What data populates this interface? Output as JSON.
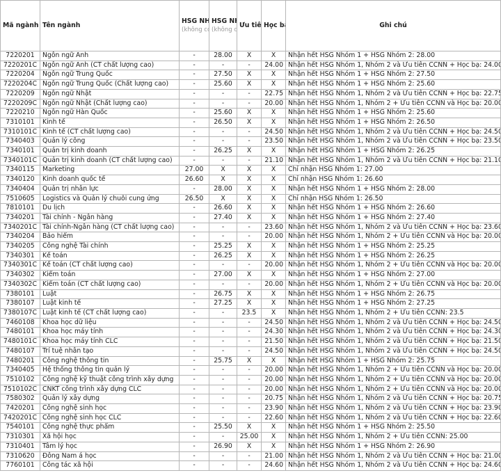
{
  "headers": {
    "code": "Mã ngành",
    "name": "Tên ngành",
    "hsg1": "HSG NHÓM 1",
    "hsg1_sub": "(không có CCNN)",
    "hsg2": "HSG NHÓM 2",
    "hsg2_sub": "(không có CCNN)",
    "ccnn": "Ưu tiên CCNN",
    "hocba": "Học bạ",
    "note": "Ghi chú"
  },
  "rows": [
    [
      "7220201",
      "Ngôn ngữ Anh",
      "-",
      "28.00",
      "X",
      "X",
      "Nhận hết HSG Nhóm 1 + HSG Nhóm 2: 28.00"
    ],
    [
      "7220201C",
      "Ngôn ngữ Anh (CT chất lượng cao)",
      "-",
      "-",
      "-",
      "24.00",
      "Nhận hết HSG Nhóm 1, Nhóm 2 và Ưu tiên CCNN + Học bạ: 24.00"
    ],
    [
      "7220204",
      "Ngôn ngữ Trung Quốc",
      "-",
      "27.50",
      "X",
      "X",
      "Nhận hết HSG Nhóm 1 + HSG Nhóm 2: 27.50"
    ],
    [
      "7220204C",
      "Ngôn ngữ Trung Quốc (Chất lượng cao)",
      "-",
      "25.60",
      "X",
      "X",
      "Nhận hết HSG Nhóm 1 + HSG Nhóm 2: 25.60"
    ],
    [
      "7220209",
      "Ngôn ngữ Nhật",
      "-",
      "-",
      "-",
      "22.75",
      "Nhận hết HSG Nhóm 1, Nhóm 2 và Ưu tiên CCNN + Học bạ: 22.75"
    ],
    [
      "7220209C",
      "Ngôn ngữ Nhật (Chất lượng cao)",
      "-",
      "-",
      "-",
      "20.00",
      "Nhận hết HSG Nhóm 1, Nhóm 2 + Ưu tiên CCNN và Học bạ: 20.00"
    ],
    [
      "7220210",
      "Ngôn ngữ Hàn Quốc",
      "-",
      "25.60",
      "X",
      "X",
      "Nhận hết HSG Nhóm 1 + HSG Nhóm 2: 25.60"
    ],
    [
      "7310101",
      "Kinh tế",
      "-",
      "26.50",
      "X",
      "X",
      "Nhận hết HSG Nhóm 1 + HSG Nhóm 2: 26.50"
    ],
    [
      "7310101C",
      "Kinh tế (CT chất lượng cao)",
      "-",
      "-",
      "-",
      "24.50",
      "Nhận hết HSG Nhóm 1, Nhóm 2 và Ưu tiên CCNN + Học bạ: 24.50"
    ],
    [
      "7340403",
      "Quản lý công",
      "-",
      "-",
      "-",
      "23.50",
      "Nhận hết HSG Nhóm 1, Nhóm 2 và Ưu tiên CCNN + Học bạ: 23.50"
    ],
    [
      "7340101",
      "Quản trị kinh doanh",
      "-",
      "26.25",
      "X",
      "X",
      "Nhận hết HSG Nhóm 1 + HSG Nhóm 2: 26.25"
    ],
    [
      "7340101C",
      "Quản trị kinh doanh (CT chất lượng cao)",
      "-",
      "-",
      "-",
      "21.10",
      "Nhận hết HSG Nhóm 1, Nhóm 2 và Ưu tiên CCNN + Học bạ: 21.10"
    ],
    [
      "7340115",
      "Marketing",
      "27.00",
      "X",
      "X",
      "X",
      "Chỉ nhận HSG Nhóm 1: 27.00"
    ],
    [
      "7340120",
      "Kinh doanh quốc tế",
      "26.60",
      "X",
      "X",
      "X",
      "Chỉ nhận HSG Nhóm 1: 26.60"
    ],
    [
      "7340404",
      "Quản trị nhân lực",
      "-",
      "28.00",
      "X",
      "X",
      "Nhận hết HSG Nhóm 1 + HSG Nhóm 2: 28.00"
    ],
    [
      "7510605",
      "Logistics và Quản lý chuỗi cung ứng",
      "26.50",
      "X",
      "X",
      "X",
      "Chỉ nhận HSG Nhóm 1: 26.50"
    ],
    [
      "7810101",
      "Du lịch",
      "-",
      "26.60",
      "X",
      "X",
      "Nhận hết HSG Nhóm 1 + HSG Nhóm 2: 26.60"
    ],
    [
      "7340201",
      "Tài chính - Ngân hàng",
      "-",
      "27.40",
      "X",
      "X",
      "Nhận hết HSG Nhóm 1 + HSG Nhóm 2: 27.40"
    ],
    [
      "7340201C",
      "Tài chính-Ngân hàng (CT chất lượng cao)",
      "-",
      "-",
      "-",
      "23.60",
      "Nhận hết HSG Nhóm 1, Nhóm 2 và Ưu tiên CCNN + Học bạ: 23.60"
    ],
    [
      "7340204",
      "Bảo hiểm",
      "-",
      "-",
      "-",
      "20.00",
      "Nhận hết HSG Nhóm 1, Nhóm 2 + Ưu tiên CCNN và Học bạ: 20.00"
    ],
    [
      "7340205",
      "Công nghệ Tài chính",
      "-",
      "25.25",
      "X",
      "X",
      "Nhận hết HSG Nhóm 1 + HSG Nhóm 2: 25.25"
    ],
    [
      "7340301",
      "Kế toán",
      "-",
      "26.25",
      "X",
      "X",
      "Nhận hết HSG Nhóm 1 + HSG Nhóm 2: 26.25"
    ],
    [
      "7340301C",
      "Kế toán (CT chất lượng cao)",
      "-",
      "-",
      "-",
      "20.00",
      "Nhận hết HSG Nhóm 1, Nhóm 2 + Ưu tiên CCNN và Học bạ: 20.00"
    ],
    [
      "7340302",
      "Kiểm toán",
      "-",
      "27.00",
      "X",
      "X",
      "Nhận hết HSG Nhóm 1 + HSG Nhóm 2: 27.00"
    ],
    [
      "7340302C",
      "Kiểm toán (CT chất lượng cao)",
      "-",
      "-",
      "-",
      "20.00",
      "Nhận hết HSG Nhóm 1, Nhóm 2 + Ưu tiên CCNN và Học bạ: 20.00"
    ],
    [
      "7380101",
      "Luật",
      "-",
      "26.75",
      "X",
      "X",
      "Nhận hết HSG Nhóm 1 + HSG Nhóm 2: 26.75"
    ],
    [
      "7380107",
      "Luật kinh tế",
      "-",
      "27.25",
      "X",
      "X",
      "Nhận hết HSG Nhóm 1 + HSG Nhóm 2: 27.25"
    ],
    [
      "7380107C",
      "Luật kinh tế (CT chất lượng cao)",
      "-",
      "-",
      "23.5",
      "X",
      "Nhận hết HSG Nhóm 1, Nhóm 2 + Ưu tiên CCNN: 23.5"
    ],
    [
      "7460108",
      "Khoa học dữ liệu",
      "-",
      "-",
      "-",
      "24.50",
      "Nhận hết HSG Nhóm 1, Nhóm 2 và Ưu tiên CCNN + Học bạ: 24.50"
    ],
    [
      "7480101",
      "Khoa học máy tính",
      "-",
      "-",
      "-",
      "24.30",
      "Nhận hết HSG Nhóm 1, Nhóm 2 và Ưu tiên CCNN + Học bạ: 24.30"
    ],
    [
      "7480101C",
      "Khoa học máy tính CLC",
      "-",
      "-",
      "-",
      "21.50",
      "Nhận hết HSG Nhóm 1, Nhóm 2 và Ưu tiên CCNN + Học bạ: 21.50"
    ],
    [
      "7480107",
      "Trí tuệ nhân tạo",
      "-",
      "-",
      "-",
      "24.50",
      "Nhận hết HSG Nhóm 1, Nhóm 2 và Ưu tiên CCNN + Học bạ: 24.50"
    ],
    [
      "7480201",
      "Công nghệ thông tin",
      "-",
      "25.75",
      "X",
      "X",
      "Nhận hết HSG Nhóm 1 + HSG Nhóm 2: 25.75"
    ],
    [
      "7340405",
      "Hệ thống thông tin quản lý",
      "-",
      "-",
      "-",
      "20.00",
      "Nhận hết HSG Nhóm 1, Nhóm 2 + Ưu tiên CCNN và Học bạ: 20.00"
    ],
    [
      "7510102",
      "Công nghệ kỹ thuật công trình xây dựng",
      "-",
      "-",
      "-",
      "20.00",
      "Nhận hết HSG Nhóm 1, Nhóm 2 + Ưu tiên CCNN và Học bạ: 20.00"
    ],
    [
      "7510102C",
      "CNKT công trình xây dựng CLC",
      "-",
      "-",
      "-",
      "20.00",
      "Nhận hết HSG Nhóm 1, Nhóm 2 + Ưu tiên CCNN và Học bạ: 20.00"
    ],
    [
      "7580302",
      "Quản lý xây dựng",
      "-",
      "-",
      "-",
      "20.75",
      "Nhận hết HSG Nhóm 1, Nhóm 2 và Ưu tiên CCNN + Học bạ: 20.75"
    ],
    [
      "7420201",
      "Công nghệ sinh học",
      "-",
      "-",
      "-",
      "23.90",
      "Nhận hết HSG Nhóm 1, Nhóm 2 và Ưu tiên CCNN + Học bạ: 23.90"
    ],
    [
      "7420201C",
      "Công nghệ sinh học CLC",
      "-",
      "-",
      "-",
      "22.60",
      "Nhận hết HSG Nhóm 1, Nhóm 2 và Ưu tiên CCNN + Học bạ: 22.60"
    ],
    [
      "7540101",
      "Công nghệ thực phẩm",
      "-",
      "25.50",
      "X",
      "X",
      "Nhận hết HSG Nhóm 1 + HSG Nhóm 2: 25.50"
    ],
    [
      "7310301",
      "Xã hội học",
      "-",
      "-",
      "25.00",
      "X",
      "Nhận hết HSG Nhóm 1, Nhóm 2 + Ưu tiên CCNN: 25.00"
    ],
    [
      "7310401",
      "Tâm lý học",
      "-",
      "26.90",
      "X",
      "X",
      "Nhận hết HSG Nhóm 1 + HSG Nhóm 2: 26.90"
    ],
    [
      "7310620",
      "Đông Nam á học",
      "-",
      "-",
      "-",
      "21.00",
      "Nhận hết HSG Nhóm 1, Nhóm 2 và Ưu tiên CCNN + Học bạ: 21.00"
    ],
    [
      "7760101",
      "Công tác xã hội",
      "-",
      "-",
      "-",
      "24.60",
      "Nhận hết HSG Nhóm 1, Nhóm 2 và Ưu tiên CCNN + Học bạ: 24.60"
    ]
  ]
}
